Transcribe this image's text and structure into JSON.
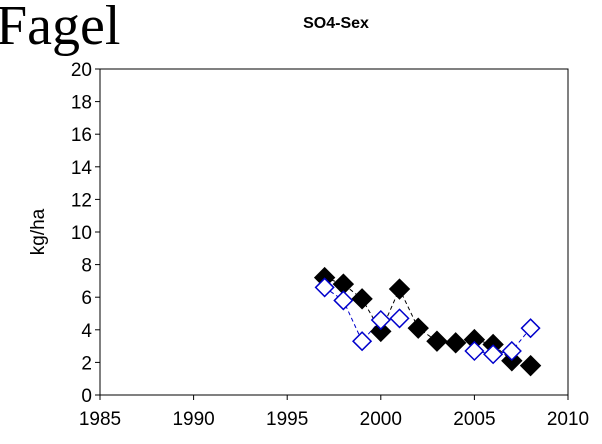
{
  "header_text": "Fagel",
  "chart_data": {
    "type": "scatter",
    "title": "SO4-Sex",
    "y_label": "kg/ha",
    "x": [
      1997,
      1998,
      1999,
      2000,
      2001,
      2002,
      2003,
      2004,
      2005,
      2006,
      2007,
      2008
    ],
    "series": [
      {
        "color": "#000000",
        "marker": "filled-diamond",
        "line": "dashed",
        "values": [
          7.2,
          6.8,
          5.9,
          3.9,
          6.5,
          4.1,
          3.3,
          3.2,
          3.4,
          3.1,
          2.1,
          1.8
        ]
      },
      {
        "color": "#0000cc",
        "marker": "open-diamond",
        "line": "dashed",
        "values": [
          6.6,
          5.8,
          3.3,
          4.6,
          4.7,
          null,
          null,
          null,
          2.7,
          2.5,
          2.7,
          4.1
        ]
      }
    ],
    "xlim": [
      1985,
      2010
    ],
    "xticks": [
      1985,
      1990,
      1995,
      2000,
      2005,
      2010
    ],
    "ylim": [
      0,
      20
    ],
    "yticks": [
      0,
      2,
      4,
      6,
      8,
      10,
      12,
      14,
      16,
      18,
      20
    ],
    "grid": false
  }
}
